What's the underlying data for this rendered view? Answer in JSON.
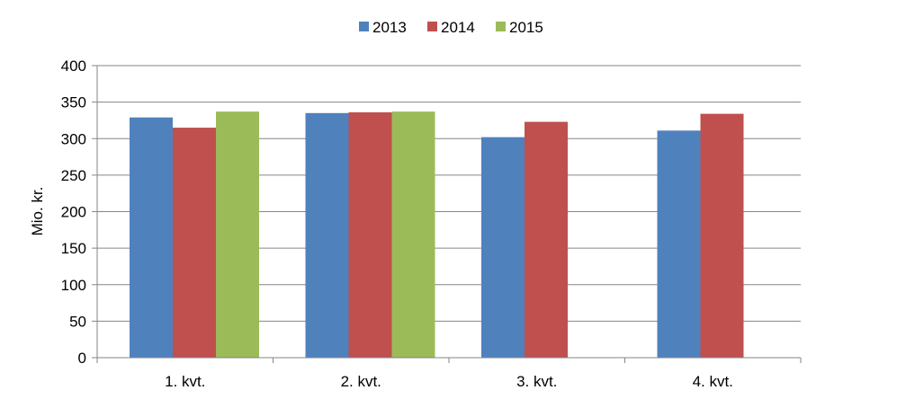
{
  "chart_data": {
    "type": "bar",
    "title": "",
    "xlabel": "",
    "ylabel": "Mio. kr.",
    "ylim": [
      0,
      400
    ],
    "yticks": [
      0,
      50,
      100,
      150,
      200,
      250,
      300,
      350,
      400
    ],
    "grid": true,
    "legend_position": "top",
    "categories": [
      "1. kvt.",
      "2. kvt.",
      "3. kvt.",
      "4. kvt."
    ],
    "series": [
      {
        "name": "2013",
        "color": "#4F81BD",
        "values": [
          329,
          335,
          302,
          311
        ]
      },
      {
        "name": "2014",
        "color": "#C0504D",
        "values": [
          315,
          336,
          323,
          334
        ]
      },
      {
        "name": "2015",
        "color": "#9BBB59",
        "values": [
          337,
          337,
          null,
          null
        ]
      }
    ]
  }
}
